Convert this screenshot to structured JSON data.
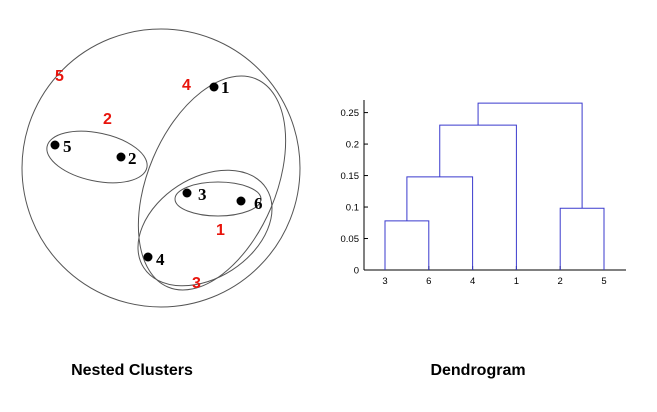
{
  "nested_clusters": {
    "caption": "Nested Clusters",
    "points": [
      {
        "label": "1"
      },
      {
        "label": "2"
      },
      {
        "label": "3"
      },
      {
        "label": "4"
      },
      {
        "label": "5"
      },
      {
        "label": "6"
      }
    ],
    "cluster_labels": [
      "1",
      "2",
      "3",
      "4",
      "5"
    ],
    "colors": {
      "cluster_label": "#e8140c",
      "point": "#000000",
      "outline": "#555555"
    }
  },
  "dendrogram": {
    "caption": "Dendrogram",
    "leaf_order": [
      "3",
      "6",
      "4",
      "1",
      "2",
      "5"
    ],
    "y_ticks": [
      "0",
      "0.05",
      "0.1",
      "0.15",
      "0.2",
      "0.25"
    ],
    "color": "#3a3acd"
  },
  "chart_data": {
    "type": "dendrogram",
    "leaf_order": [
      "3",
      "6",
      "4",
      "1",
      "2",
      "5"
    ],
    "ylim": [
      0,
      0.27
    ],
    "y_ticks": [
      0,
      0.05,
      0.1,
      0.15,
      0.2,
      0.25
    ],
    "merges": [
      {
        "left": "3",
        "right": "6",
        "height": 0.078
      },
      {
        "left": "2",
        "right": "5",
        "height": 0.098
      },
      {
        "left": "3,6",
        "right": "4",
        "height": 0.148
      },
      {
        "left": "3,6,4",
        "right": "1",
        "height": 0.23
      },
      {
        "left": "3,6,4,1",
        "right": "2,5",
        "height": 0.265
      }
    ]
  }
}
